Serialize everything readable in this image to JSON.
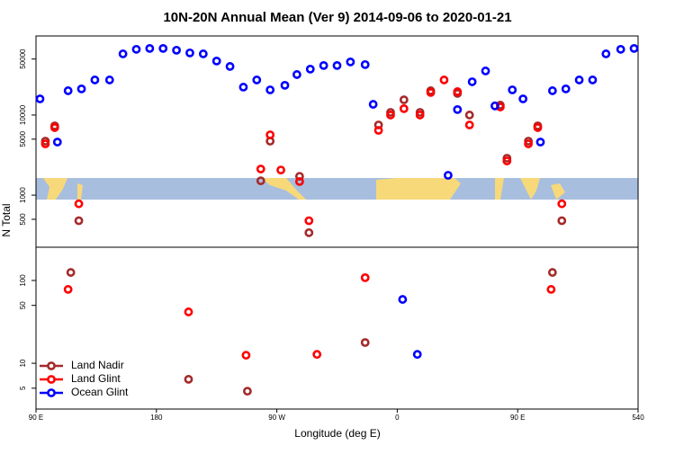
{
  "chart_data": [
    {
      "type": "scatter",
      "title": "10N-20N Annual Mean (Ver 9)   2014-09-06 to 2020-01-21",
      "log_y": true,
      "xlim": [
        90,
        540
      ],
      "ylim": [
        224,
        97000
      ],
      "yticks": [
        500,
        1000,
        5000,
        10000,
        50000
      ],
      "series": [
        {
          "name": "Land Nadir",
          "color": "#a52a2a",
          "x": [
            97,
            104,
            122,
            258,
            265,
            287,
            294,
            346,
            355,
            365,
            377,
            385,
            405,
            414,
            437,
            442,
            458,
            465,
            483
          ],
          "values": [
            4720,
            7330,
            480,
            1510,
            4720,
            1720,
            340,
            7520,
            10800,
            15500,
            10800,
            20100,
            18600,
            10000,
            13300,
            2890,
            4720,
            7330,
            480
          ]
        },
        {
          "name": "Land Glint",
          "color": "#ff0000",
          "x": [
            97,
            104,
            122,
            258,
            265,
            273,
            287,
            294,
            346,
            355,
            365,
            377,
            385,
            395,
            405,
            414,
            437,
            442,
            458,
            465,
            483
          ],
          "values": [
            4370,
            6970,
            780,
            2120,
            5660,
            2060,
            1480,
            480,
            6440,
            10000,
            12000,
            10000,
            19100,
            27400,
            19600,
            7520,
            12600,
            2670,
            4370,
            6970,
            780
          ]
        },
        {
          "name": "Ocean Glint",
          "color": "#0000ff",
          "x": [
            93,
            106,
            114,
            124,
            134,
            145,
            155,
            165,
            175,
            185,
            195,
            205,
            215,
            225,
            235,
            245,
            255,
            265,
            276,
            285,
            295,
            305,
            315,
            325,
            336,
            342,
            398,
            405,
            416,
            426,
            433,
            446,
            454,
            467,
            476,
            486,
            496,
            506,
            516,
            527,
            537
          ],
          "values": [
            15900,
            4600,
            20100,
            21200,
            27400,
            27400,
            58000,
            66100,
            67800,
            67800,
            64400,
            59600,
            58000,
            47200,
            40400,
            22300,
            27400,
            20600,
            23500,
            32000,
            37400,
            41500,
            41500,
            46000,
            42600,
            13600,
            1770,
            11700,
            26000,
            35500,
            13000,
            20600,
            15900,
            4600,
            20100,
            21200,
            27400,
            27400,
            58000,
            66100,
            67800
          ]
        }
      ]
    },
    {
      "type": "scatter",
      "x_label": "Longitude (deg E)",
      "y_label": "N Total",
      "log_y": true,
      "xlim": [
        90,
        540
      ],
      "ylim": [
        2.8,
        252
      ],
      "xticks": [
        {
          "value": 90,
          "label": "90 E"
        },
        180,
        {
          "value": 270,
          "label": "90 W"
        },
        {
          "value": 360,
          "label": "0"
        },
        {
          "value": 450,
          "label": "90 E"
        },
        540
      ],
      "yticks": [
        5,
        10,
        50,
        100
      ],
      "legend": "lower left",
      "series": [
        {
          "name": "Land Nadir",
          "color": "#a52a2a",
          "x": [
            116,
            204,
            248,
            336,
            476
          ],
          "values": [
            125,
            6.4,
            4.6,
            17.8,
            125
          ]
        },
        {
          "name": "Land Glint",
          "color": "#ff0000",
          "x": [
            114,
            204,
            247,
            300,
            336,
            475
          ],
          "values": [
            78,
            41.7,
            12.5,
            12.8,
            108,
            78
          ]
        },
        {
          "name": "Ocean Glint",
          "color": "#0000ff",
          "x": [
            364,
            375
          ],
          "values": [
            59,
            12.8
          ]
        }
      ]
    }
  ]
}
